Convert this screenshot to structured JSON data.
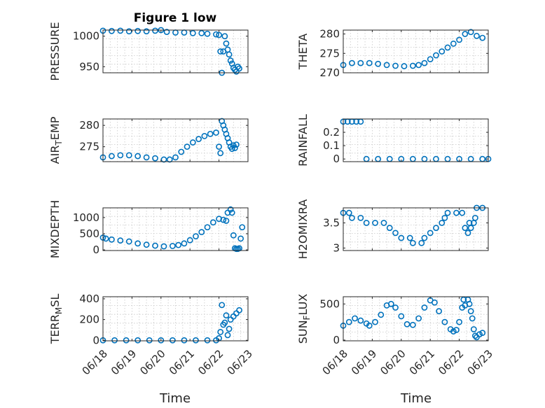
{
  "title": "Figure 1 low",
  "xlabel": "Time",
  "x_ticks": [
    "06/18",
    "06/19",
    "06/20",
    "06/21",
    "06/22",
    "06/23"
  ],
  "colors": {
    "marker": "#0072bd",
    "axis": "#262626",
    "grid": "#c8c8c8"
  },
  "chart_data": [
    {
      "type": "scatter",
      "id": "pressure",
      "ylabel": "PRESSURE",
      "ylim": [
        940,
        1010
      ],
      "yticks": [
        950,
        1000
      ],
      "points": [
        [
          0,
          1009
        ],
        [
          0.3,
          1008.5
        ],
        [
          0.6,
          1009
        ],
        [
          0.9,
          1008
        ],
        [
          1.2,
          1008.5
        ],
        [
          1.5,
          1008
        ],
        [
          1.8,
          1009
        ],
        [
          2.0,
          1010
        ],
        [
          2.2,
          1007
        ],
        [
          2.5,
          1006
        ],
        [
          2.8,
          1006
        ],
        [
          3.1,
          1005
        ],
        [
          3.4,
          1005
        ],
        [
          3.6,
          1004
        ],
        [
          3.9,
          1003
        ],
        [
          4.0,
          1002
        ],
        [
          4.05,
          975
        ],
        [
          4.1,
          940
        ],
        [
          4.15,
          975
        ],
        [
          4.2,
          1000
        ],
        [
          4.25,
          988
        ],
        [
          4.3,
          978
        ],
        [
          4.35,
          970
        ],
        [
          4.4,
          960
        ],
        [
          4.45,
          955
        ],
        [
          4.5,
          948
        ],
        [
          4.55,
          945
        ],
        [
          4.6,
          942
        ],
        [
          4.65,
          950
        ],
        [
          4.7,
          947
        ]
      ]
    },
    {
      "type": "scatter",
      "id": "theta",
      "ylabel": "THETA",
      "ylim": [
        270,
        281
      ],
      "yticks": [
        270,
        275,
        280
      ],
      "points": [
        [
          0,
          272
        ],
        [
          0.3,
          272.5
        ],
        [
          0.6,
          272.5
        ],
        [
          0.9,
          272.5
        ],
        [
          1.2,
          272.3
        ],
        [
          1.5,
          272
        ],
        [
          1.8,
          271.8
        ],
        [
          2.1,
          271.7
        ],
        [
          2.4,
          271.8
        ],
        [
          2.6,
          272
        ],
        [
          2.8,
          272.5
        ],
        [
          3.0,
          273.5
        ],
        [
          3.2,
          274.5
        ],
        [
          3.4,
          275.5
        ],
        [
          3.6,
          276.5
        ],
        [
          3.8,
          277.5
        ],
        [
          4.0,
          278.5
        ],
        [
          4.2,
          280
        ],
        [
          4.4,
          280.5
        ],
        [
          4.6,
          279.5
        ],
        [
          4.8,
          279
        ]
      ]
    },
    {
      "type": "scatter",
      "id": "airtemp",
      "ylabel": "AIR_TEMP",
      "ylim": [
        271.5,
        281.5
      ],
      "yticks": [
        275,
        280
      ],
      "points": [
        [
          0,
          272.5
        ],
        [
          0.3,
          272.8
        ],
        [
          0.6,
          273
        ],
        [
          0.9,
          273
        ],
        [
          1.2,
          272.8
        ],
        [
          1.5,
          272.5
        ],
        [
          1.8,
          272.3
        ],
        [
          2.1,
          272
        ],
        [
          2.3,
          272
        ],
        [
          2.5,
          272.5
        ],
        [
          2.7,
          273.8
        ],
        [
          2.9,
          275
        ],
        [
          3.1,
          276
        ],
        [
          3.3,
          276.8
        ],
        [
          3.5,
          277.5
        ],
        [
          3.7,
          278
        ],
        [
          3.9,
          278.3
        ],
        [
          4.0,
          275
        ],
        [
          4.05,
          273.5
        ],
        [
          4.1,
          281
        ],
        [
          4.15,
          280
        ],
        [
          4.2,
          279
        ],
        [
          4.25,
          278
        ],
        [
          4.3,
          277
        ],
        [
          4.35,
          276
        ],
        [
          4.4,
          275
        ],
        [
          4.45,
          274.5
        ],
        [
          4.5,
          275.3
        ],
        [
          4.55,
          274.7
        ],
        [
          4.6,
          275.5
        ]
      ]
    },
    {
      "type": "scatter",
      "id": "rainfall",
      "ylabel": "RAINFALL",
      "ylim": [
        -0.02,
        0.3
      ],
      "yticks": [
        0,
        0.1,
        0.2
      ],
      "points": [
        [
          0,
          0.28
        ],
        [
          0.15,
          0.28
        ],
        [
          0.3,
          0.28
        ],
        [
          0.45,
          0.28
        ],
        [
          0.6,
          0.28
        ],
        [
          0.8,
          0
        ],
        [
          1.2,
          0
        ],
        [
          1.6,
          0
        ],
        [
          2.0,
          0
        ],
        [
          2.4,
          0
        ],
        [
          2.8,
          0
        ],
        [
          3.2,
          0
        ],
        [
          3.6,
          0
        ],
        [
          4.0,
          0
        ],
        [
          4.4,
          0
        ],
        [
          4.8,
          0
        ],
        [
          5.0,
          0
        ]
      ]
    },
    {
      "type": "scatter",
      "id": "mixdepth",
      "ylabel": "MIXDEPTH",
      "ylim": [
        -20,
        1300
      ],
      "yticks": [
        0,
        500,
        1000
      ],
      "points": [
        [
          0,
          380
        ],
        [
          0.1,
          350
        ],
        [
          0.3,
          320
        ],
        [
          0.6,
          290
        ],
        [
          0.9,
          260
        ],
        [
          1.2,
          200
        ],
        [
          1.5,
          160
        ],
        [
          1.8,
          130
        ],
        [
          2.1,
          110
        ],
        [
          2.4,
          120
        ],
        [
          2.6,
          150
        ],
        [
          2.8,
          200
        ],
        [
          3.0,
          300
        ],
        [
          3.2,
          420
        ],
        [
          3.4,
          550
        ],
        [
          3.6,
          700
        ],
        [
          3.8,
          850
        ],
        [
          4.0,
          960
        ],
        [
          4.15,
          930
        ],
        [
          4.25,
          900
        ],
        [
          4.3,
          1150
        ],
        [
          4.4,
          1250
        ],
        [
          4.45,
          1150
        ],
        [
          4.5,
          450
        ],
        [
          4.55,
          50
        ],
        [
          4.6,
          30
        ],
        [
          4.65,
          30
        ],
        [
          4.7,
          50
        ],
        [
          4.75,
          350
        ],
        [
          4.8,
          700
        ]
      ]
    },
    {
      "type": "scatter",
      "id": "h2omixra",
      "ylabel": "H2OMIXRA",
      "ylim": [
        2.95,
        3.8
      ],
      "yticks": [
        3,
        3.5
      ],
      "points": [
        [
          0,
          3.7
        ],
        [
          0.2,
          3.7
        ],
        [
          0.3,
          3.6
        ],
        [
          0.6,
          3.6
        ],
        [
          0.8,
          3.5
        ],
        [
          1.1,
          3.5
        ],
        [
          1.4,
          3.5
        ],
        [
          1.6,
          3.4
        ],
        [
          1.8,
          3.3
        ],
        [
          2.0,
          3.2
        ],
        [
          2.3,
          3.2
        ],
        [
          2.4,
          3.1
        ],
        [
          2.7,
          3.1
        ],
        [
          2.8,
          3.2
        ],
        [
          3.0,
          3.3
        ],
        [
          3.2,
          3.4
        ],
        [
          3.4,
          3.5
        ],
        [
          3.5,
          3.6
        ],
        [
          3.6,
          3.7
        ],
        [
          3.9,
          3.7
        ],
        [
          4.1,
          3.7
        ],
        [
          4.2,
          3.4
        ],
        [
          4.3,
          3.3
        ],
        [
          4.35,
          3.5
        ],
        [
          4.4,
          3.4
        ],
        [
          4.5,
          3.5
        ],
        [
          4.55,
          3.6
        ],
        [
          4.6,
          3.8
        ],
        [
          4.8,
          3.8
        ]
      ]
    },
    {
      "type": "scatter",
      "id": "terrmsl",
      "ylabel": "TERR_MSL",
      "ylim": [
        -5,
        420
      ],
      "yticks": [
        0,
        200,
        400
      ],
      "points": [
        [
          0,
          0
        ],
        [
          0.4,
          0
        ],
        [
          0.8,
          0
        ],
        [
          1.2,
          0
        ],
        [
          1.6,
          0
        ],
        [
          2.0,
          0
        ],
        [
          2.4,
          0
        ],
        [
          2.8,
          0
        ],
        [
          3.2,
          0
        ],
        [
          3.6,
          0
        ],
        [
          3.9,
          0
        ],
        [
          4.0,
          20
        ],
        [
          4.05,
          80
        ],
        [
          4.1,
          340
        ],
        [
          4.15,
          150
        ],
        [
          4.2,
          170
        ],
        [
          4.25,
          240
        ],
        [
          4.3,
          50
        ],
        [
          4.35,
          110
        ],
        [
          4.4,
          200
        ],
        [
          4.5,
          230
        ],
        [
          4.6,
          260
        ],
        [
          4.7,
          290
        ]
      ]
    },
    {
      "type": "scatter",
      "id": "sunflux",
      "ylabel": "SUN_FLUX",
      "ylim": [
        -10,
        600
      ],
      "yticks": [
        0,
        500
      ],
      "points": [
        [
          0,
          200
        ],
        [
          0.2,
          250
        ],
        [
          0.4,
          300
        ],
        [
          0.6,
          270
        ],
        [
          0.8,
          230
        ],
        [
          0.9,
          200
        ],
        [
          1.1,
          250
        ],
        [
          1.3,
          350
        ],
        [
          1.5,
          480
        ],
        [
          1.65,
          500
        ],
        [
          1.8,
          450
        ],
        [
          2.0,
          330
        ],
        [
          2.2,
          220
        ],
        [
          2.4,
          210
        ],
        [
          2.6,
          300
        ],
        [
          2.8,
          450
        ],
        [
          3.0,
          550
        ],
        [
          3.15,
          520
        ],
        [
          3.3,
          400
        ],
        [
          3.5,
          250
        ],
        [
          3.7,
          150
        ],
        [
          3.8,
          120
        ],
        [
          3.9,
          140
        ],
        [
          4.0,
          250
        ],
        [
          4.1,
          450
        ],
        [
          4.15,
          560
        ],
        [
          4.2,
          480
        ],
        [
          4.3,
          560
        ],
        [
          4.35,
          500
        ],
        [
          4.4,
          400
        ],
        [
          4.45,
          300
        ],
        [
          4.5,
          150
        ],
        [
          4.55,
          60
        ],
        [
          4.6,
          40
        ],
        [
          4.7,
          80
        ],
        [
          4.8,
          100
        ]
      ]
    }
  ]
}
